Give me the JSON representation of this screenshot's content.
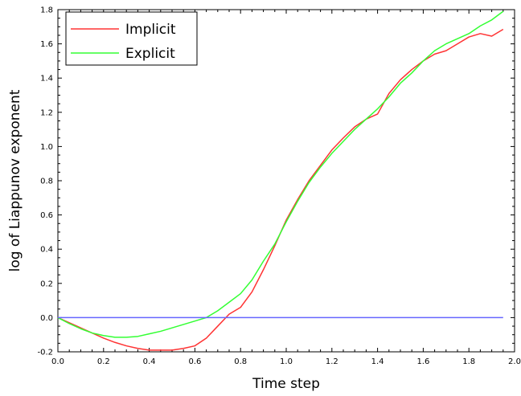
{
  "chart_data": {
    "type": "line",
    "xlabel": "Time step",
    "ylabel": "log of Liappunov exponent",
    "xlim": [
      0.0,
      2.0
    ],
    "ylim": [
      -0.2,
      1.8
    ],
    "xticks": [
      "0.0",
      "0.2",
      "0.4",
      "0.6",
      "0.8",
      "1.0",
      "1.2",
      "1.4",
      "1.6",
      "1.8",
      "2.0"
    ],
    "yticks": [
      "-0.2",
      "0.0",
      "0.2",
      "0.4",
      "0.6",
      "0.8",
      "1.0",
      "1.2",
      "1.4",
      "1.6",
      "1.8"
    ],
    "legend_position": "top-left",
    "grid": false,
    "series": [
      {
        "name": "Implicit",
        "color": "#ff3333",
        "x": [
          0.0,
          0.05,
          0.1,
          0.15,
          0.2,
          0.25,
          0.3,
          0.35,
          0.4,
          0.45,
          0.5,
          0.55,
          0.6,
          0.65,
          0.7,
          0.75,
          0.8,
          0.85,
          0.9,
          0.95,
          1.0,
          1.05,
          1.1,
          1.15,
          1.2,
          1.25,
          1.3,
          1.35,
          1.4,
          1.45,
          1.5,
          1.55,
          1.6,
          1.65,
          1.7,
          1.75,
          1.8,
          1.85,
          1.9,
          1.95
        ],
        "y": [
          0.0,
          -0.03,
          -0.06,
          -0.09,
          -0.12,
          -0.145,
          -0.165,
          -0.18,
          -0.19,
          -0.19,
          -0.19,
          -0.18,
          -0.165,
          -0.12,
          -0.05,
          0.02,
          0.06,
          0.15,
          0.28,
          0.42,
          0.57,
          0.69,
          0.8,
          0.89,
          0.98,
          1.05,
          1.115,
          1.16,
          1.19,
          1.31,
          1.39,
          1.45,
          1.5,
          1.54,
          1.56,
          1.6,
          1.64,
          1.66,
          1.645,
          1.685
        ]
      },
      {
        "name": "Explicit",
        "color": "#33ff33",
        "x": [
          0.0,
          0.05,
          0.1,
          0.15,
          0.2,
          0.25,
          0.3,
          0.35,
          0.4,
          0.45,
          0.5,
          0.55,
          0.6,
          0.65,
          0.7,
          0.75,
          0.8,
          0.85,
          0.9,
          0.95,
          1.0,
          1.05,
          1.1,
          1.15,
          1.2,
          1.25,
          1.3,
          1.35,
          1.4,
          1.45,
          1.5,
          1.55,
          1.6,
          1.65,
          1.7,
          1.75,
          1.8,
          1.85,
          1.9,
          1.95
        ],
        "y": [
          0.0,
          -0.035,
          -0.065,
          -0.09,
          -0.105,
          -0.115,
          -0.115,
          -0.11,
          -0.095,
          -0.08,
          -0.06,
          -0.04,
          -0.02,
          0.0,
          0.04,
          0.09,
          0.14,
          0.22,
          0.33,
          0.43,
          0.56,
          0.68,
          0.79,
          0.88,
          0.96,
          1.03,
          1.1,
          1.16,
          1.22,
          1.29,
          1.37,
          1.43,
          1.5,
          1.56,
          1.6,
          1.63,
          1.66,
          1.705,
          1.74,
          1.79
        ]
      },
      {
        "color": "#6666ff",
        "x": [
          0.0,
          1.95
        ],
        "y": [
          0.0,
          0.0
        ]
      }
    ]
  }
}
